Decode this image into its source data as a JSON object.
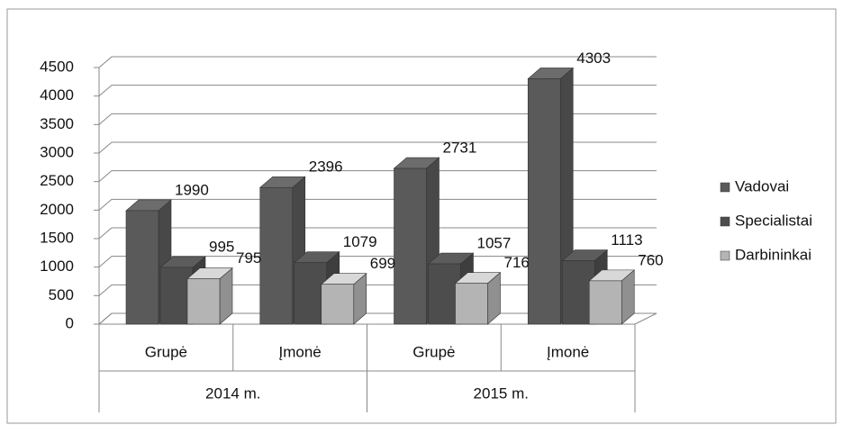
{
  "chart_data": {
    "type": "bar3d",
    "categories": [
      "Grupė",
      "Įmonė",
      "Grupė",
      "Įmonė"
    ],
    "group_labels": [
      "2014 m.",
      "2015 m."
    ],
    "series": [
      {
        "name": "Vadovai",
        "color": "#5a5a5a",
        "values": [
          1990,
          2396,
          2731,
          4303
        ]
      },
      {
        "name": "Specialistai",
        "color": "#4d4d4d",
        "values": [
          995,
          1079,
          1057,
          1113
        ]
      },
      {
        "name": "Darbininkai",
        "color": "#b4b4b4",
        "values": [
          795,
          699,
          716,
          760
        ]
      }
    ],
    "ylim": [
      0,
      4500
    ],
    "yticks": [
      0,
      500,
      1000,
      1500,
      2000,
      2500,
      3000,
      3500,
      4000,
      4500
    ],
    "grid": true,
    "legend": "right"
  }
}
